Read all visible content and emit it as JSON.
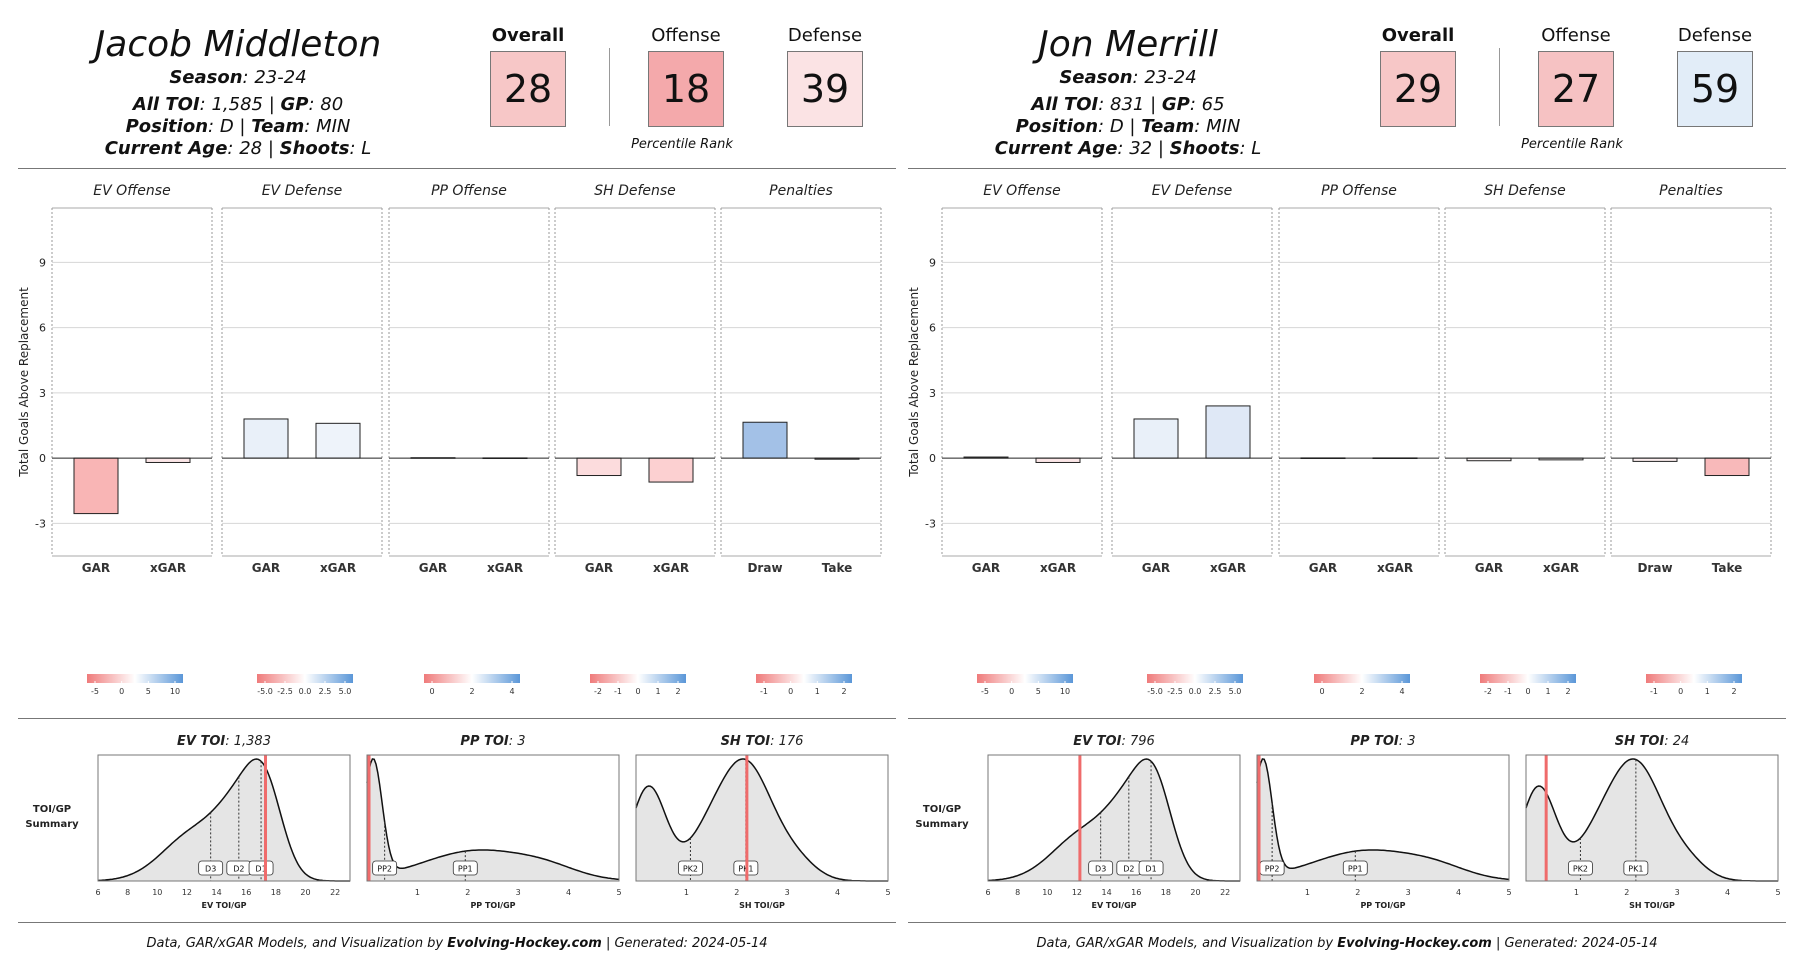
{
  "chart_data": [
    {
      "type": "bar",
      "player": {
        "name": "Jacob Middleton",
        "season": "23-24",
        "toi": "1,585",
        "gp": "80",
        "position": "D",
        "team": "MIN",
        "age": "28",
        "shoots": "L"
      },
      "ranks": [
        {
          "label": "Overall",
          "value": "28",
          "color": "#f7c7c7"
        },
        {
          "label": "Offense",
          "value": "18",
          "color": "#f4a9ab"
        },
        {
          "label": "Defense",
          "value": "39",
          "color": "#fbe3e4"
        }
      ],
      "rank_note": "Percentile Rank",
      "ylabel": "Total Goals Above Replacement",
      "ylim": [
        -4.5,
        11.5
      ],
      "yticks": [
        -3,
        0,
        3,
        6,
        9
      ],
      "facets": [
        {
          "title": "EV Offense",
          "categories": [
            "GAR",
            "xGAR"
          ],
          "values": [
            -2.55,
            -0.2
          ],
          "colors": [
            "#f9b5b5",
            "#fbe6e7"
          ],
          "legend_ticks": [
            "-5",
            "0",
            "5",
            "10"
          ]
        },
        {
          "title": "EV Defense",
          "categories": [
            "GAR",
            "xGAR"
          ],
          "values": [
            1.8,
            1.6
          ],
          "colors": [
            "#e9f0f9",
            "#eef3fa"
          ],
          "legend_ticks": [
            "-5.0",
            "-2.5",
            "0.0",
            "2.5",
            "5.0"
          ]
        },
        {
          "title": "PP Offense",
          "categories": [
            "GAR",
            "xGAR"
          ],
          "values": [
            0.02,
            0.01
          ],
          "colors": [
            "#ffffff",
            "#ffffff"
          ],
          "legend_ticks": [
            "0",
            "2",
            "4"
          ]
        },
        {
          "title": "SH Defense",
          "categories": [
            "GAR",
            "xGAR"
          ],
          "values": [
            -0.8,
            -1.1
          ],
          "colors": [
            "#fcdcdd",
            "#fcd0d1"
          ],
          "legend_ticks": [
            "-2",
            "-1",
            "0",
            "1",
            "2"
          ]
        },
        {
          "title": "Penalties",
          "categories": [
            "Draw",
            "Take"
          ],
          "values": [
            1.65,
            -0.05
          ],
          "colors": [
            "#a3c1e7",
            "#fdf4f4"
          ],
          "legend_ticks": [
            "-1",
            "0",
            "1",
            "2"
          ]
        }
      ],
      "toi_summary_label": [
        "TOI/GP",
        "Summary"
      ],
      "toi": [
        {
          "label": "EV TOI",
          "value": "1,383",
          "xlabel": "EV TOI/GP",
          "xticks": [
            "6",
            "8",
            "10",
            "12",
            "14",
            "16",
            "18",
            "20",
            "22"
          ],
          "xrange": [
            6,
            23
          ],
          "player": 17.3,
          "markers": [
            {
              "label": "D3",
              "x": 13.6
            },
            {
              "label": "D2",
              "x": 15.5
            },
            {
              "label": "D1",
              "x": 17.0
            }
          ],
          "curve": "ev"
        },
        {
          "label": "PP TOI",
          "value": "3",
          "xlabel": "PP TOI/GP",
          "xticks": [
            "1",
            "2",
            "3",
            "4",
            "5"
          ],
          "xrange": [
            0,
            5
          ],
          "player": 0.04,
          "markers": [
            {
              "label": "PP2",
              "x": 0.35
            },
            {
              "label": "PP1",
              "x": 1.95
            }
          ],
          "curve": "pp"
        },
        {
          "label": "SH TOI",
          "value": "176",
          "xlabel": "SH TOI/GP",
          "xticks": [
            "1",
            "2",
            "3",
            "4",
            "5"
          ],
          "xrange": [
            0,
            5
          ],
          "player": 2.2,
          "markers": [
            {
              "label": "PK2",
              "x": 1.08
            },
            {
              "label": "PK1",
              "x": 2.18
            }
          ],
          "curve": "sh"
        }
      ]
    },
    {
      "type": "bar",
      "player": {
        "name": "Jon Merrill",
        "season": "23-24",
        "toi": "831",
        "gp": "65",
        "position": "D",
        "team": "MIN",
        "age": "32",
        "shoots": "L"
      },
      "ranks": [
        {
          "label": "Overall",
          "value": "29",
          "color": "#f7c7c7"
        },
        {
          "label": "Offense",
          "value": "27",
          "color": "#f6c2c3"
        },
        {
          "label": "Defense",
          "value": "59",
          "color": "#e2edf8"
        }
      ],
      "rank_note": "Percentile Rank",
      "ylabel": "Total Goals Above Replacement",
      "ylim": [
        -4.5,
        11.5
      ],
      "yticks": [
        -3,
        0,
        3,
        6,
        9
      ],
      "facets": [
        {
          "title": "EV Offense",
          "categories": [
            "GAR",
            "xGAR"
          ],
          "values": [
            0.05,
            -0.2
          ],
          "colors": [
            "#ffffff",
            "#fbe6e7"
          ],
          "legend_ticks": [
            "-5",
            "0",
            "5",
            "10"
          ]
        },
        {
          "title": "EV Defense",
          "categories": [
            "GAR",
            "xGAR"
          ],
          "values": [
            1.8,
            2.4
          ],
          "colors": [
            "#e9f0f9",
            "#dfe8f6"
          ],
          "legend_ticks": [
            "-5.0",
            "-2.5",
            "0.0",
            "2.5",
            "5.0"
          ]
        },
        {
          "title": "PP Offense",
          "categories": [
            "GAR",
            "xGAR"
          ],
          "values": [
            0.01,
            0.01
          ],
          "colors": [
            "#ffffff",
            "#ffffff"
          ],
          "legend_ticks": [
            "0",
            "2",
            "4"
          ]
        },
        {
          "title": "SH Defense",
          "categories": [
            "GAR",
            "xGAR"
          ],
          "values": [
            -0.12,
            -0.08
          ],
          "colors": [
            "#fdf7f7",
            "#fdf8f8"
          ],
          "legend_ticks": [
            "-2",
            "-1",
            "0",
            "1",
            "2"
          ]
        },
        {
          "title": "Penalties",
          "categories": [
            "Draw",
            "Take"
          ],
          "values": [
            -0.15,
            -0.8
          ],
          "colors": [
            "#fdeff0",
            "#f8b9ba"
          ],
          "legend_ticks": [
            "-1",
            "0",
            "1",
            "2"
          ]
        }
      ],
      "toi_summary_label": [
        "TOI/GP",
        "Summary"
      ],
      "toi": [
        {
          "label": "EV TOI",
          "value": "796",
          "xlabel": "EV TOI/GP",
          "xticks": [
            "6",
            "8",
            "10",
            "12",
            "14",
            "16",
            "18",
            "20",
            "22"
          ],
          "xrange": [
            6,
            23
          ],
          "player": 12.2,
          "markers": [
            {
              "label": "D3",
              "x": 13.6
            },
            {
              "label": "D2",
              "x": 15.5
            },
            {
              "label": "D1",
              "x": 17.0
            }
          ],
          "curve": "ev"
        },
        {
          "label": "PP TOI",
          "value": "3",
          "xlabel": "PP TOI/GP",
          "xticks": [
            "1",
            "2",
            "3",
            "4",
            "5"
          ],
          "xrange": [
            0,
            5
          ],
          "player": 0.04,
          "markers": [
            {
              "label": "PP2",
              "x": 0.3
            },
            {
              "label": "PP1",
              "x": 1.95
            }
          ],
          "curve": "pp"
        },
        {
          "label": "SH TOI",
          "value": "24",
          "xlabel": "SH TOI/GP",
          "xticks": [
            "1",
            "2",
            "3",
            "4",
            "5"
          ],
          "xrange": [
            0,
            5
          ],
          "player": 0.4,
          "markers": [
            {
              "label": "PK2",
              "x": 1.08
            },
            {
              "label": "PK1",
              "x": 2.18
            }
          ],
          "curve": "sh"
        }
      ]
    }
  ],
  "labels": {
    "season": "Season",
    "all_toi": "All TOI",
    "gp": "GP",
    "position": "Position",
    "team": "Team",
    "current_age": "Current Age",
    "shoots": "Shoots"
  },
  "footer": {
    "prefix": "Data, GAR/xGAR Models, and Visualization by",
    "site": "Evolving-Hockey.com",
    "generated": "| Generated: 2024-05-14"
  },
  "colors": {
    "neg": "#f08080",
    "pos": "#5b9bd5",
    "player_line": "#ef6b6b",
    "density_fill": "#e5e5e5"
  }
}
